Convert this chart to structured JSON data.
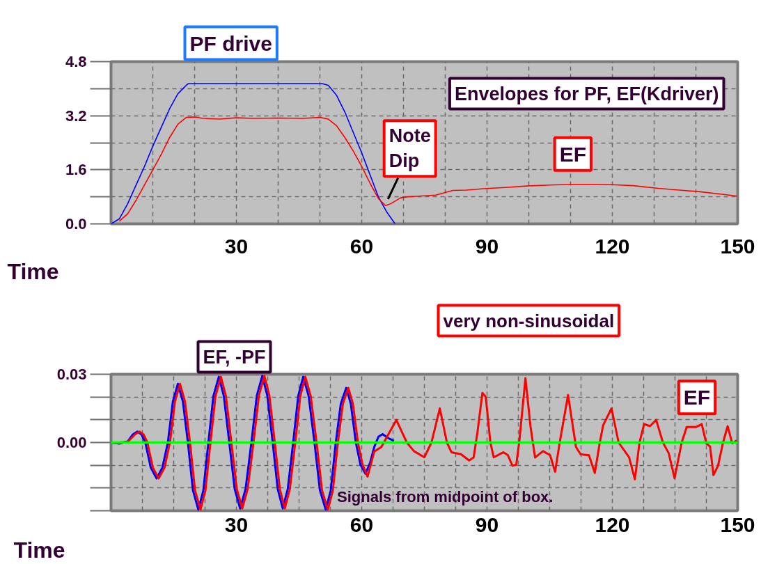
{
  "chart_data": [
    {
      "type": "line",
      "title": "Envelopes for PF, EF(Kdriver)",
      "xlabel": "Time",
      "xlim": [
        0,
        150
      ],
      "ylim": [
        0,
        4.8
      ],
      "xticks": [
        {
          "value": 10,
          "label": null
        },
        {
          "value": 20,
          "label": null
        },
        30,
        {
          "value": 40,
          "label": null
        },
        {
          "value": 50,
          "label": null
        },
        60,
        {
          "value": 70,
          "label": null
        },
        {
          "value": 80,
          "label": null
        },
        90,
        {
          "value": 100,
          "label": null
        },
        {
          "value": 110,
          "label": null
        },
        120,
        {
          "value": 130,
          "label": null
        },
        {
          "value": 140,
          "label": null
        },
        150
      ],
      "yticks": [
        {
          "value": 0,
          "label": "0.0"
        },
        {
          "value": 0.8,
          "label": null
        },
        1.6,
        {
          "value": 2.4,
          "label": null
        },
        3.2,
        {
          "value": 4.0,
          "label": null
        },
        4.8
      ],
      "grid": true,
      "series": [
        {
          "name": "PF drive",
          "color": "#0000ff",
          "x": [
            0,
            2,
            4,
            6,
            8,
            10,
            12,
            14,
            16,
            18,
            18.5,
            50.5,
            52,
            54,
            56,
            58,
            60,
            62,
            64,
            66,
            68
          ],
          "values": [
            0,
            0.15,
            0.6,
            1.15,
            1.7,
            2.3,
            2.85,
            3.4,
            3.85,
            4.1,
            4.15,
            4.15,
            4.1,
            3.8,
            3.3,
            2.7,
            2.1,
            1.45,
            0.8,
            0.35,
            0
          ]
        },
        {
          "name": "EF",
          "color": "#ff0000",
          "x": [
            2,
            4,
            6,
            8,
            10,
            12,
            14,
            16,
            18,
            20,
            22,
            26,
            30,
            34,
            40,
            46,
            50,
            52,
            54,
            56,
            58,
            60,
            62,
            64,
            65.7,
            67,
            69.3,
            71,
            73.5,
            77.7,
            81.8,
            85,
            89.2,
            95,
            99.5,
            105,
            110,
            115,
            120,
            125,
            131,
            136,
            141,
            146,
            150
          ],
          "values": [
            0.08,
            0.3,
            0.7,
            1.15,
            1.6,
            2.05,
            2.55,
            2.95,
            3.15,
            3.16,
            3.12,
            3.1,
            3.14,
            3.12,
            3.13,
            3.12,
            3.15,
            3.1,
            2.9,
            2.55,
            2.15,
            1.7,
            1.2,
            0.75,
            0.54,
            0.6,
            0.77,
            0.8,
            0.82,
            0.85,
            0.99,
            1.0,
            1.04,
            1.08,
            1.12,
            1.15,
            1.17,
            1.17,
            1.16,
            1.13,
            1.05,
            1.0,
            0.95,
            0.88,
            0.82
          ]
        }
      ],
      "annotations": [
        {
          "text": "Note Dip",
          "x": 65.7,
          "y": 0.54
        }
      ]
    },
    {
      "type": "line",
      "title": "EF, -PF",
      "xlabel": "Time",
      "xlim": [
        0,
        150
      ],
      "ylim": [
        -0.03,
        0.03
      ],
      "xticks": [
        {
          "value": 0,
          "label": null
        },
        {
          "value": 7.5,
          "label": null
        },
        {
          "value": 15,
          "label": null
        },
        {
          "value": 22.5,
          "label": null
        },
        30,
        {
          "value": 37.5,
          "label": null
        },
        {
          "value": 45,
          "label": null
        },
        {
          "value": 52.5,
          "label": null
        },
        60,
        {
          "value": 67.5,
          "label": null
        },
        {
          "value": 75,
          "label": null
        },
        {
          "value": 82.5,
          "label": null
        },
        90,
        {
          "value": 97.5,
          "label": null
        },
        {
          "value": 105,
          "label": null
        },
        {
          "value": 112.5,
          "label": null
        },
        120,
        {
          "value": 127.5,
          "label": null
        },
        {
          "value": 135,
          "label": null
        },
        {
          "value": 142.5,
          "label": null
        },
        150
      ],
      "yticks": [
        {
          "value": -0.03,
          "label": null
        },
        {
          "value": -0.02,
          "label": null
        },
        {
          "value": -0.01,
          "label": null
        },
        {
          "value": 0,
          "label": "0.00"
        },
        {
          "value": 0.01,
          "label": null
        },
        {
          "value": 0.02,
          "label": null
        },
        0.03
      ],
      "grid": true,
      "ref_lines": [
        {
          "axis": "y",
          "value": 0,
          "color": "#00ff00"
        }
      ],
      "series": [
        {
          "color": "#0000ff",
          "x": [
            0,
            2,
            4,
            5.2,
            6.3,
            7.3,
            8.2,
            9.5,
            10.9,
            12.3,
            13.6,
            14.8,
            16,
            17.2,
            18.4,
            19.6,
            20.9,
            22.1,
            23.3,
            24.5,
            25.8,
            27,
            28.3,
            29.6,
            30.9,
            32.2,
            33.6,
            34.9,
            36.2,
            37.4,
            38.7,
            39.9,
            41.1,
            42.3,
            43.6,
            44.8,
            46,
            47.3,
            48.7,
            50,
            51.4,
            52.6,
            53.8,
            55,
            56.3,
            57.4,
            58.6,
            59.7,
            60.9,
            62,
            63,
            64,
            65,
            66.3,
            67.7
          ],
          "values": [
            0,
            -0.0005,
            0.0005,
            0.0035,
            0.0048,
            0.0035,
            0,
            -0.011,
            -0.0158,
            -0.011,
            0,
            0.018,
            0.0258,
            0.018,
            0,
            -0.021,
            -0.0296,
            -0.021,
            0,
            0.0204,
            0.0289,
            0.0204,
            0,
            -0.0205,
            -0.029,
            -0.0205,
            0,
            0.0207,
            0.0293,
            0.0207,
            0,
            -0.0205,
            -0.029,
            -0.0205,
            0,
            0.0204,
            0.0289,
            0.0204,
            0,
            -0.021,
            -0.0296,
            -0.021,
            0,
            0.017,
            0.024,
            0.017,
            0,
            -0.0097,
            -0.0137,
            -0.009,
            -0.002,
            0.0025,
            0.0037,
            0.002,
            0.0007
          ]
        },
        {
          "name": "EF",
          "color": "#ff0000",
          "x": [
            0,
            2,
            4,
            5.7,
            6.8,
            7.8,
            8.7,
            10,
            11.4,
            12.8,
            14.1,
            15.3,
            16.5,
            17.7,
            18.9,
            20.1,
            21.4,
            22.6,
            23.8,
            25,
            26.3,
            27.5,
            28.8,
            30.1,
            31.4,
            32.7,
            34.1,
            35.4,
            36.7,
            37.9,
            39.2,
            40.4,
            41.6,
            42.8,
            44.1,
            45.3,
            46.5,
            47.8,
            49.2,
            50.5,
            51.9,
            53.1,
            54.3,
            55.5,
            56.8,
            57.9,
            59.1,
            60.2,
            61.4,
            63,
            64.7,
            66.5,
            68.3,
            70.8,
            72.5,
            75,
            76.7,
            78.7,
            80.4,
            81.5,
            83.8,
            85.7,
            86.8,
            87.7,
            88.9,
            89.7,
            90.8,
            91.6,
            93.9,
            95,
            96.1,
            97,
            97.7,
            99.2,
            100.4,
            101.5,
            103.4,
            105.1,
            106.3,
            107.4,
            109.4,
            111.3,
            112.4,
            114.4,
            115.8,
            117,
            117.8,
            119.8,
            121.5,
            124,
            125.4,
            126.5,
            127.6,
            129,
            130.5,
            132.1,
            133.5,
            134.9,
            136.6,
            137.8,
            140,
            141.4,
            142.5,
            143.4,
            144.2,
            145.3,
            146.5,
            147.6,
            148.7,
            149.8
          ],
          "values": [
            0,
            0,
            0.0003,
            0.0035,
            0.0048,
            0.0035,
            0,
            -0.011,
            -0.0158,
            -0.011,
            0,
            0.018,
            0.0258,
            0.018,
            0,
            -0.021,
            -0.0296,
            -0.021,
            0,
            0.0204,
            0.0289,
            0.0204,
            0,
            -0.0205,
            -0.029,
            -0.0205,
            0,
            0.0207,
            0.0293,
            0.0207,
            0,
            -0.0205,
            -0.029,
            -0.0205,
            0,
            0.0204,
            0.0289,
            0.0204,
            0,
            -0.021,
            -0.0296,
            -0.021,
            0,
            0.017,
            0.024,
            0.017,
            0,
            -0.0097,
            -0.015,
            -0.004,
            -0.002,
            0.004,
            0.0099,
            0,
            -0.0038,
            -0.0065,
            0,
            0.015,
            0,
            -0.0043,
            -0.0052,
            -0.0079,
            -0.0066,
            0.0044,
            0.0218,
            0.02,
            0,
            -0.0065,
            -0.0043,
            -0.0056,
            -0.0102,
            -0.0098,
            0,
            0.0283,
            0.0072,
            -0.0066,
            -0.0038,
            -0.0056,
            -0.0129,
            0,
            0.0209,
            -0.002,
            -0.0052,
            -0.0056,
            -0.0134,
            0,
            0.0076,
            0.015,
            0,
            -0.0065,
            -0.0162,
            0,
            0.0081,
            0.0072,
            0.0099,
            0,
            -0.0047,
            -0.0157,
            0,
            0.0068,
            0.0068,
            0.0081,
            -0.0004,
            -0.0018,
            -0.0143,
            -0.0102,
            0,
            0.0072,
            -0.0004,
            0.0009
          ]
        }
      ],
      "annotations": [
        "very non-sinusoidal",
        "Signals from midpoint of box."
      ]
    }
  ]
}
